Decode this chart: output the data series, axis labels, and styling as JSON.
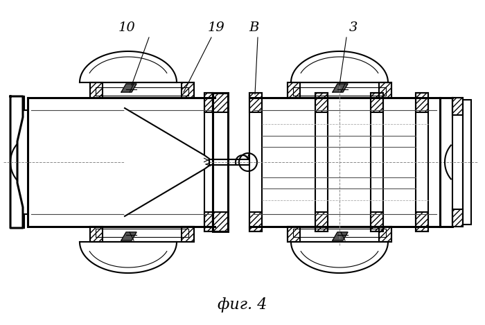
{
  "title": "фиг. 4",
  "title_fontsize": 16,
  "bg_color": "#ffffff",
  "line_color": "#000000",
  "label_10": "10",
  "label_19": "19",
  "label_B": "B",
  "label_3": "3"
}
